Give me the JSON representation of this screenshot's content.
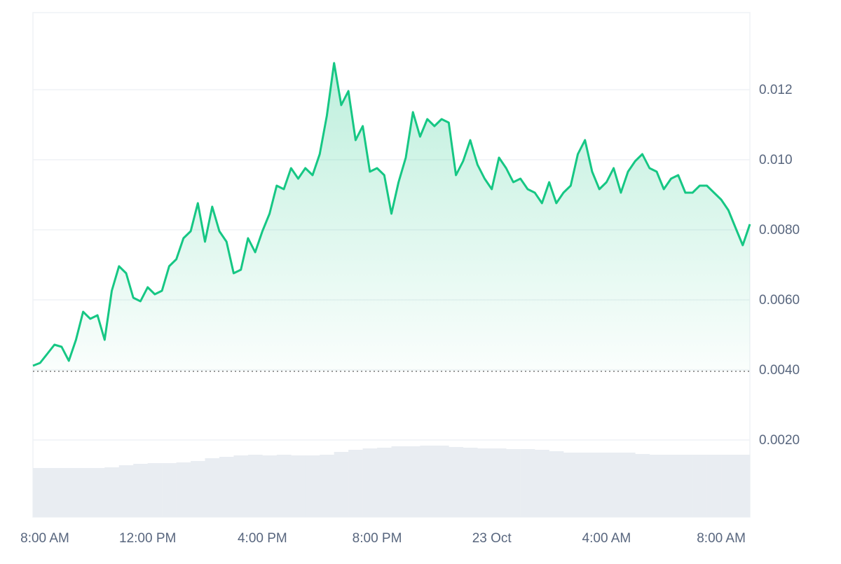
{
  "chart_data": {
    "type": "line",
    "color": "#16c784",
    "grid": true,
    "xlim": [
      0,
      25
    ],
    "xticks": [
      {
        "value": 0,
        "label": "8:00 AM"
      },
      {
        "value": 4,
        "label": "12:00 PM"
      },
      {
        "value": 8,
        "label": "4:00 PM"
      },
      {
        "value": 12,
        "label": "8:00 PM"
      },
      {
        "value": 16,
        "label": "23 Oct"
      },
      {
        "value": 20,
        "label": "4:00 AM"
      },
      {
        "value": 24,
        "label": "8:00 AM"
      }
    ],
    "ylim": [
      -0.0002,
      0.0142
    ],
    "yticks": [
      {
        "value": 0.002,
        "label": "0.0020"
      },
      {
        "value": 0.004,
        "label": "0.0040"
      },
      {
        "value": 0.006,
        "label": "0.0060"
      },
      {
        "value": 0.008,
        "label": "0.0080"
      },
      {
        "value": 0.01,
        "label": "0.010"
      },
      {
        "value": 0.012,
        "label": "0.012"
      }
    ],
    "baseline": 0.00396,
    "x": [
      0,
      0.25,
      0.5,
      0.75,
      1,
      1.25,
      1.5,
      1.75,
      2,
      2.25,
      2.5,
      2.75,
      3,
      3.25,
      3.5,
      3.75,
      4,
      4.25,
      4.5,
      4.75,
      5,
      5.25,
      5.5,
      5.75,
      6,
      6.25,
      6.5,
      6.75,
      7,
      7.25,
      7.5,
      7.75,
      8,
      8.25,
      8.5,
      8.75,
      9,
      9.25,
      9.5,
      9.75,
      10,
      10.25,
      10.5,
      10.75,
      11,
      11.25,
      11.5,
      11.75,
      12,
      12.25,
      12.5,
      12.75,
      13,
      13.25,
      13.5,
      13.75,
      14,
      14.25,
      14.5,
      14.75,
      15,
      15.25,
      15.5,
      15.75,
      16,
      16.25,
      16.5,
      16.75,
      17,
      17.25,
      17.5,
      17.75,
      18,
      18.25,
      18.5,
      18.75,
      19,
      19.25,
      19.5,
      19.75,
      20,
      20.25,
      20.5,
      20.75,
      21,
      21.25,
      21.5,
      21.75,
      22,
      22.25,
      22.5,
      22.75,
      23,
      23.25,
      23.5,
      23.75,
      24,
      24.25,
      24.5,
      24.75,
      25
    ],
    "values": [
      0.00412,
      0.0042,
      0.00446,
      0.00472,
      0.00466,
      0.00426,
      0.00486,
      0.00566,
      0.00546,
      0.00556,
      0.00486,
      0.00626,
      0.00696,
      0.00676,
      0.00606,
      0.00596,
      0.00636,
      0.00616,
      0.00626,
      0.00696,
      0.00716,
      0.00776,
      0.00796,
      0.00876,
      0.00766,
      0.00866,
      0.00796,
      0.00766,
      0.00676,
      0.00686,
      0.00776,
      0.00736,
      0.00796,
      0.00846,
      0.00926,
      0.00916,
      0.00976,
      0.00946,
      0.00976,
      0.00956,
      0.01016,
      0.01126,
      0.01276,
      0.01156,
      0.01196,
      0.01056,
      0.01096,
      0.00966,
      0.00976,
      0.00956,
      0.00846,
      0.00936,
      0.01006,
      0.01136,
      0.01066,
      0.01116,
      0.01096,
      0.01116,
      0.01106,
      0.00956,
      0.00996,
      0.01056,
      0.00986,
      0.00946,
      0.00916,
      0.01006,
      0.00976,
      0.00936,
      0.00946,
      0.00916,
      0.00906,
      0.00876,
      0.00936,
      0.00876,
      0.00906,
      0.00926,
      0.01016,
      0.01056,
      0.00966,
      0.00916,
      0.00936,
      0.00976,
      0.00906,
      0.00966,
      0.00996,
      0.01016,
      0.00976,
      0.00966,
      0.00916,
      0.00946,
      0.00956,
      0.00906,
      0.00906,
      0.00926,
      0.00926,
      0.00906,
      0.00886,
      0.00856,
      0.00806,
      0.00756,
      0.00816
    ],
    "volume": {
      "color": "#e9edf2",
      "ylim": [
        0,
        720
      ],
      "values": [
        70,
        70,
        70,
        70,
        70,
        71,
        74,
        76,
        77,
        77,
        78,
        80,
        84,
        86,
        88,
        89,
        88,
        89,
        88,
        88,
        89,
        93,
        96,
        98,
        99,
        101,
        101,
        102,
        102,
        100,
        99,
        98,
        98,
        97,
        97,
        96,
        94,
        92,
        92,
        92,
        92,
        92,
        90,
        89,
        89,
        89,
        89,
        89,
        89,
        89
      ]
    }
  }
}
